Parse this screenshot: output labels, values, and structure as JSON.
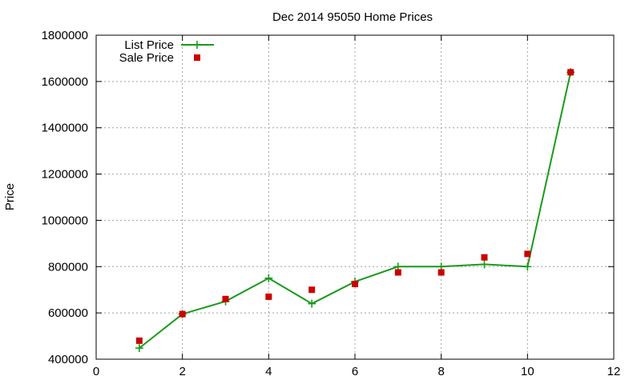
{
  "chart_data": {
    "type": "line",
    "title": "Dec 2014 95050 Home Prices",
    "xlabel": "",
    "ylabel": "Price",
    "xlim": [
      0,
      12
    ],
    "ylim": [
      400000,
      1800000
    ],
    "x_ticks": [
      0,
      2,
      4,
      6,
      8,
      10,
      12
    ],
    "y_ticks": [
      400000,
      600000,
      800000,
      1000000,
      1200000,
      1400000,
      1600000,
      1800000
    ],
    "grid": true,
    "legend": "top-left",
    "series": [
      {
        "name": "List Price",
        "style": "line-with-plus-markers",
        "color": "#1a9a1a",
        "points": [
          {
            "x": 1,
            "y": 448000
          },
          {
            "x": 2,
            "y": 595000
          },
          {
            "x": 3,
            "y": 650000
          },
          {
            "x": 4,
            "y": 750000
          },
          {
            "x": 5,
            "y": 640000
          },
          {
            "x": 6,
            "y": 735000
          },
          {
            "x": 7,
            "y": 800000
          },
          {
            "x": 8,
            "y": 800000
          },
          {
            "x": 9,
            "y": 810000
          },
          {
            "x": 10,
            "y": 800000
          },
          {
            "x": 11,
            "y": 1640000
          }
        ]
      },
      {
        "name": "Sale Price",
        "style": "square-markers",
        "color": "#cc0000",
        "points": [
          {
            "x": 1,
            "y": 480000
          },
          {
            "x": 2,
            "y": 595000
          },
          {
            "x": 3,
            "y": 660000
          },
          {
            "x": 4,
            "y": 670000
          },
          {
            "x": 5,
            "y": 700000
          },
          {
            "x": 6,
            "y": 725000
          },
          {
            "x": 7,
            "y": 775000
          },
          {
            "x": 8,
            "y": 775000
          },
          {
            "x": 9,
            "y": 840000
          },
          {
            "x": 10,
            "y": 855000
          },
          {
            "x": 11,
            "y": 1640000
          }
        ]
      }
    ]
  }
}
